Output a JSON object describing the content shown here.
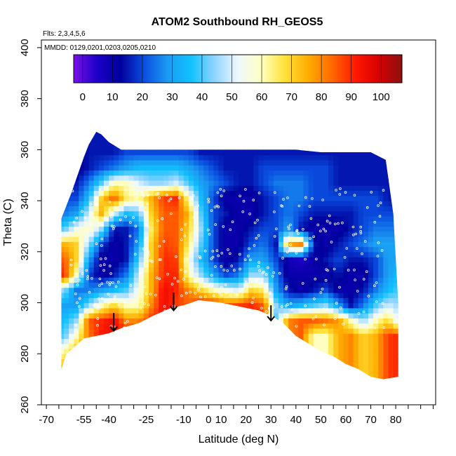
{
  "chart_data": {
    "type": "heatmap",
    "title": "ATOM2 Southbound RH_GEOS5",
    "annotations": [
      "Flts: 2,3,4,5,6",
      "MMDD: 0129,0201,0203,0205,0210"
    ],
    "xlabel": "Latitude (deg N)",
    "ylabel": "Theta (C)",
    "xlim": [
      -72,
      86
    ],
    "ylim": [
      260,
      403
    ],
    "xticks": [
      -70,
      -65,
      -60,
      -55,
      -50,
      -45,
      -40,
      -35,
      -30,
      -25,
      -20,
      -15,
      -10,
      -5,
      0,
      5,
      10,
      15,
      20,
      25,
      30,
      35,
      40,
      45,
      50,
      55,
      60,
      65,
      70,
      75,
      80,
      85
    ],
    "xtick_labels": [
      "-70",
      "",
      "",
      "-55",
      "",
      "-40",
      "",
      "",
      "-25",
      "",
      "",
      "-10",
      "",
      "0",
      "10",
      "",
      "20",
      "",
      "30",
      "",
      "40",
      "",
      "50",
      "",
      "60",
      "",
      "70",
      "",
      "80",
      "",
      "",
      ""
    ],
    "yticks": [
      260,
      280,
      300,
      320,
      340,
      360,
      380,
      400
    ],
    "ytick_labels": [
      "260",
      "280",
      "300",
      "320",
      "340",
      "360",
      "380",
      "400"
    ],
    "colorbar": {
      "ticks": [
        0,
        10,
        20,
        30,
        40,
        50,
        60,
        70,
        80,
        90,
        100
      ],
      "tick_labels": [
        "0",
        "10",
        "20",
        "30",
        "40",
        "50",
        "60",
        "70",
        "80",
        "90",
        "100"
      ],
      "range": [
        -3,
        107
      ],
      "colors": [
        "#7a10e8",
        "#1c00c8",
        "#00009c",
        "#0a4ee0",
        "#1b9af2",
        "#10c2ff",
        "#8ed4ff",
        "#eef8ff",
        "#ffffc2",
        "#ffe23a",
        "#ffad00",
        "#ff6a00",
        "#ff1a00",
        "#d80000",
        "#8c1010"
      ]
    },
    "rh_section": {
      "lat": [
        -63,
        -58,
        -53,
        -48,
        -43,
        -38,
        -33,
        -28,
        -23,
        -18,
        -13,
        -8,
        -3,
        2,
        7,
        12,
        17,
        22,
        27,
        32,
        37,
        42,
        47,
        52,
        57,
        62,
        67,
        71
      ],
      "theta": [
        275,
        281,
        287,
        293,
        299,
        305,
        311,
        317,
        323,
        329,
        335,
        341,
        347,
        353,
        359
      ],
      "values": [
        [
          75,
          85,
          80,
          82,
          90,
          null,
          null,
          null,
          null,
          null,
          null,
          null,
          null,
          null,
          null,
          null,
          null,
          null,
          null,
          null,
          null,
          null,
          null,
          null,
          null,
          null,
          null,
          null
        ],
        [
          60,
          75,
          80,
          82,
          90,
          88,
          null,
          null,
          null,
          null,
          null,
          null,
          null,
          null,
          null,
          null,
          null,
          null,
          null,
          null,
          null,
          null,
          null,
          null,
          null,
          null,
          null,
          null
        ],
        [
          40,
          60,
          82,
          92,
          95,
          95,
          92,
          90,
          92,
          90,
          88,
          null,
          null,
          null,
          null,
          null,
          null,
          null,
          null,
          null,
          null,
          60,
          75,
          80,
          70,
          75,
          88,
          90
        ],
        [
          35,
          45,
          85,
          90,
          95,
          80,
          80,
          90,
          92,
          90,
          88,
          90,
          75,
          60,
          80,
          90,
          92,
          40,
          80,
          85,
          85,
          82,
          78,
          60,
          45,
          60,
          70,
          50
        ],
        [
          30,
          30,
          45,
          60,
          70,
          60,
          60,
          80,
          95,
          88,
          85,
          92,
          92,
          85,
          88,
          90,
          85,
          45,
          30,
          35,
          40,
          45,
          30,
          15,
          25,
          40,
          50,
          45
        ],
        [
          45,
          25,
          25,
          30,
          35,
          40,
          55,
          75,
          95,
          90,
          80,
          70,
          60,
          55,
          50,
          70,
          65,
          30,
          15,
          10,
          15,
          20,
          10,
          10,
          15,
          25,
          35,
          40
        ],
        [
          90,
          60,
          20,
          10,
          15,
          25,
          50,
          75,
          90,
          90,
          60,
          45,
          30,
          20,
          25,
          45,
          45,
          25,
          10,
          10,
          10,
          10,
          15,
          10,
          10,
          20,
          30,
          35
        ],
        [
          85,
          70,
          30,
          10,
          10,
          15,
          40,
          70,
          90,
          88,
          55,
          35,
          20,
          10,
          15,
          30,
          30,
          20,
          8,
          5,
          10,
          15,
          20,
          15,
          15,
          20,
          30,
          30
        ],
        [
          75,
          70,
          45,
          20,
          10,
          15,
          30,
          70,
          88,
          85,
          65,
          40,
          20,
          10,
          10,
          20,
          25,
          15,
          75,
          80,
          15,
          10,
          15,
          20,
          25,
          30,
          30,
          30
        ],
        [
          40,
          55,
          60,
          45,
          15,
          15,
          25,
          65,
          85,
          85,
          70,
          45,
          20,
          10,
          10,
          15,
          20,
          20,
          30,
          15,
          10,
          10,
          10,
          15,
          20,
          25,
          25,
          25
        ],
        [
          25,
          30,
          50,
          75,
          50,
          35,
          40,
          70,
          85,
          85,
          75,
          40,
          20,
          15,
          10,
          10,
          15,
          20,
          25,
          20,
          15,
          15,
          15,
          15,
          20,
          20,
          20,
          20
        ],
        [
          20,
          20,
          35,
          70,
          85,
          65,
          60,
          75,
          88,
          90,
          60,
          35,
          20,
          10,
          10,
          10,
          15,
          20,
          25,
          25,
          20,
          20,
          20,
          20,
          20,
          20,
          15,
          15
        ],
        [
          15,
          15,
          25,
          40,
          60,
          60,
          50,
          45,
          45,
          50,
          40,
          30,
          25,
          20,
          15,
          15,
          20,
          25,
          25,
          25,
          20,
          20,
          15,
          15,
          15,
          15,
          15,
          15
        ],
        [
          10,
          10,
          15,
          20,
          25,
          30,
          35,
          35,
          35,
          35,
          30,
          25,
          20,
          15,
          15,
          15,
          20,
          20,
          20,
          20,
          20,
          20,
          15,
          15,
          15,
          15,
          15,
          15
        ],
        [
          null,
          null,
          null,
          15,
          15,
          20,
          20,
          20,
          20,
          20,
          20,
          15,
          15,
          15,
          15,
          15,
          15,
          15,
          15,
          15,
          15,
          15,
          15,
          15,
          15,
          15,
          15,
          null
        ]
      ]
    },
    "bottom_boundary": {
      "lat": [
        -64,
        -62,
        -55,
        -50,
        -45,
        -40,
        -33,
        -27,
        -20,
        -15,
        -9,
        0,
        10,
        15,
        20,
        25,
        30,
        35,
        40,
        45,
        50,
        55,
        60,
        65,
        71
      ],
      "theta": [
        274,
        280,
        286,
        287,
        288,
        290,
        292,
        295,
        298,
        299,
        301,
        300,
        298,
        297,
        295,
        292,
        287,
        284,
        281,
        279,
        276,
        274,
        271,
        270,
        271
      ]
    },
    "top_boundary": {
      "lat": [
        -64,
        -60,
        -55,
        -53,
        -50,
        -48,
        -45,
        -40,
        -35,
        -30,
        -20,
        -10,
        0,
        10,
        20,
        30,
        40,
        50,
        60,
        66,
        69,
        71
      ],
      "theta": [
        333,
        343,
        357,
        362,
        367,
        366,
        363,
        360,
        360,
        360,
        360,
        360,
        360,
        360,
        360,
        360,
        359,
        359,
        359,
        356,
        335,
        300
      ]
    },
    "arrows": [
      {
        "lat": -43,
        "theta_from": 296,
        "theta_to": 289
      },
      {
        "lat": -19,
        "theta_from": 304,
        "theta_to": 297
      },
      {
        "lat": 20,
        "theta_from": 299,
        "theta_to": 293
      }
    ]
  }
}
